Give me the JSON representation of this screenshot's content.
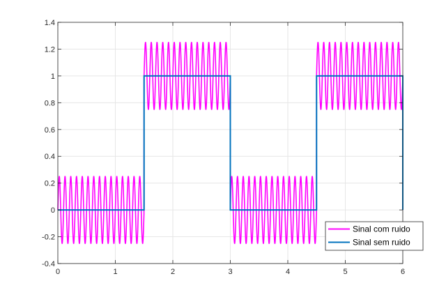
{
  "chart_data": {
    "type": "line",
    "title": "",
    "xlabel": "",
    "ylabel": "",
    "xlim": [
      0,
      6
    ],
    "ylim": [
      -0.4,
      1.4
    ],
    "xticks": [
      0,
      1,
      2,
      3,
      4,
      5,
      6
    ],
    "yticks": [
      -0.4,
      -0.2,
      0,
      0.2,
      0.4,
      0.6,
      0.8,
      1,
      1.2,
      1.4
    ],
    "xtick_labels": [
      "0",
      "1",
      "2",
      "3",
      "4",
      "5",
      "6"
    ],
    "ytick_labels": [
      "-0.4",
      "-0.2",
      "0",
      "0.2",
      "0.4",
      "0.6",
      "0.8",
      "1",
      "1.2",
      "1.4"
    ],
    "grid": true,
    "legend_position": "bottom-right",
    "series": [
      {
        "name": "Sinal com ruido",
        "color": "#ff00ff",
        "kind": "square wave plus sinusoidal noise",
        "square_period": 3,
        "square_low": 0,
        "square_high": 1,
        "noise_amplitude": 0.25,
        "noise_frequency": 10,
        "x_start": 0,
        "x_end": 6
      },
      {
        "name": "Sinal sem ruido",
        "color": "#0072bd",
        "kind": "square wave",
        "square_period": 3,
        "square_low": 0,
        "square_high": 1,
        "x_start": 0,
        "x_end": 6
      }
    ]
  }
}
